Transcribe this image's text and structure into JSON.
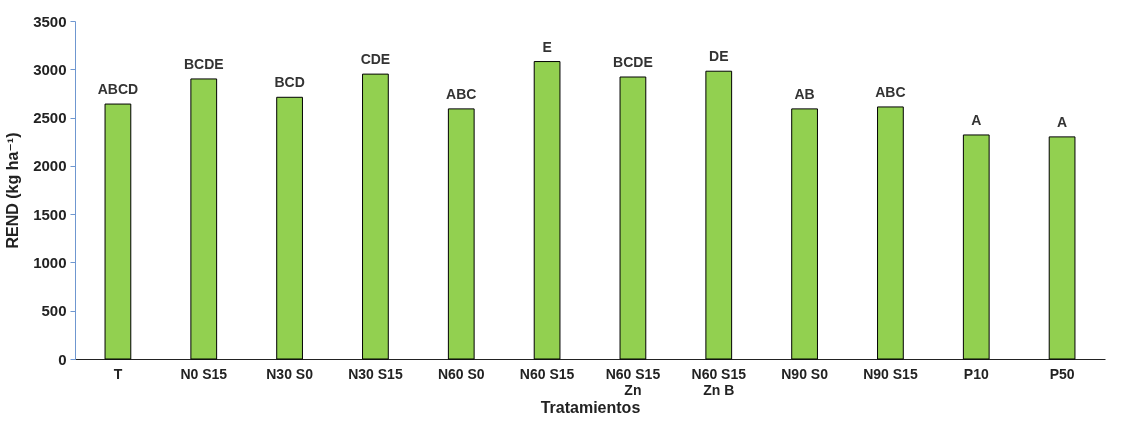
{
  "chart_data": {
    "type": "bar",
    "xlabel": "Tratamientos",
    "ylabel": "REND (kg ha⁻¹)",
    "categories": [
      "T",
      "N0 S15",
      "N30 S0",
      "N30 S15",
      "N60 S0",
      "N60 S15",
      "N60 S15 Zn",
      "N60 S15 Zn B",
      "N90 S0",
      "N90 S15",
      "P10",
      "P50"
    ],
    "values": [
      2640,
      2900,
      2710,
      2950,
      2590,
      3080,
      2920,
      2980,
      2590,
      2610,
      2320,
      2300
    ],
    "color": "#92d050",
    "ylim": [
      0,
      3500
    ],
    "yticks": [
      0,
      500,
      1000,
      1500,
      2000,
      2500,
      3000,
      3500
    ],
    "grid": false,
    "annotations": [
      {
        "text": "ABCD",
        "x": "T",
        "y": 2640
      },
      {
        "text": "BCDE",
        "x": "N0 S15",
        "y": 2900
      },
      {
        "text": "BCD",
        "x": "N30 S0",
        "y": 2710
      },
      {
        "text": "CDE",
        "x": "N30 S15",
        "y": 2950
      },
      {
        "text": "ABC",
        "x": "N60 S0",
        "y": 2590
      },
      {
        "text": "E",
        "x": "N60 S15",
        "y": 3080
      },
      {
        "text": "BCDE",
        "x": "N60 S15 Zn",
        "y": 2920
      },
      {
        "text": "DE",
        "x": "N60 S15 Zn B",
        "y": 2980
      },
      {
        "text": "AB",
        "x": "N90 S0",
        "y": 2590
      },
      {
        "text": "ABC",
        "x": "N90 S15",
        "y": 2610
      },
      {
        "text": "A",
        "x": "P10",
        "y": 2320
      },
      {
        "text": "A",
        "x": "P50",
        "y": 2300
      }
    ]
  }
}
